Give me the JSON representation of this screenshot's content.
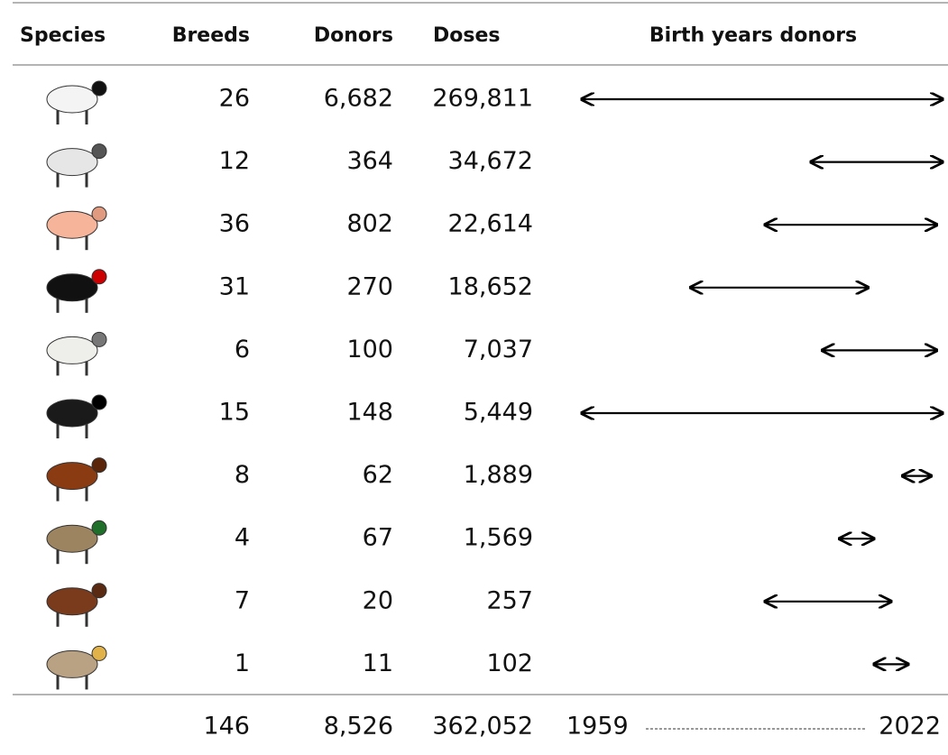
{
  "table": {
    "header": [
      "Species",
      "Breeds",
      "Donors",
      "Doses",
      "Birth years donors"
    ],
    "rows": [
      {
        "breeds": "26",
        "donors": "6,682",
        "doses": "269,811",
        "birth_years": [
          1959,
          2022
        ]
      },
      {
        "breeds": "12",
        "donors": "364",
        "doses": "34,672",
        "birth_years": [
          1999,
          2022
        ]
      },
      {
        "breeds": "36",
        "donors": "802",
        "doses": "22,614",
        "birth_years": [
          1991,
          2021
        ]
      },
      {
        "breeds": "31",
        "donors": "270",
        "doses": "18,652",
        "birth_years": [
          1978,
          2009
        ]
      },
      {
        "breeds": "6",
        "donors": "100",
        "doses": "7,037",
        "birth_years": [
          2001,
          2021
        ]
      },
      {
        "breeds": "15",
        "donors": "148",
        "doses": "5,449",
        "birth_years": [
          1959,
          2022
        ]
      },
      {
        "breeds": "8",
        "donors": "62",
        "doses": "1,889",
        "birth_years": [
          2015,
          2020
        ]
      },
      {
        "breeds": "4",
        "donors": "67",
        "doses": "1,569",
        "birth_years": [
          2004,
          2010
        ]
      },
      {
        "breeds": "7",
        "donors": "20",
        "doses": "257",
        "birth_years": [
          1991,
          2013
        ]
      },
      {
        "breeds": "1",
        "donors": "11",
        "doses": "102",
        "birth_years": [
          2010,
          2016
        ]
      }
    ],
    "totals": {
      "breeds": "146",
      "donors": "8,526",
      "doses": "362,052",
      "birth_years": [
        1959,
        2022
      ]
    }
  }
}
